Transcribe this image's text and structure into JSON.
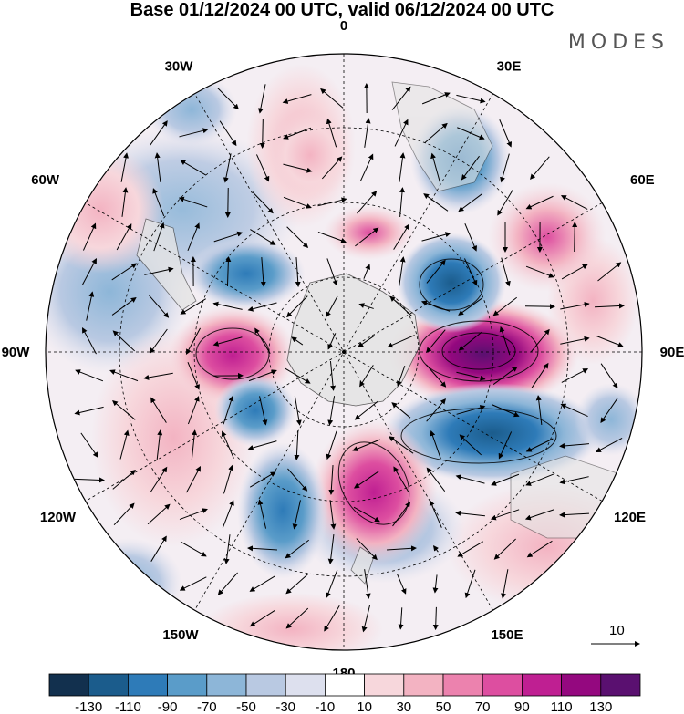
{
  "title": "Base 01/12/2024 00 UTC, valid 06/12/2024 00 UTC",
  "brand": "MODES",
  "longitude_labels": [
    "0",
    "30E",
    "60E",
    "90E",
    "120E",
    "150E",
    "180",
    "150W",
    "120W",
    "90W",
    "60W",
    "30W"
  ],
  "reference_vector": "10",
  "colorbar": {
    "labels": [
      "-130",
      "-110",
      "-90",
      "-70",
      "-50",
      "-30",
      "-10",
      "10",
      "30",
      "50",
      "70",
      "90",
      "110",
      "130"
    ],
    "colors": [
      "#12304e",
      "#1b5c8c",
      "#2e7bb8",
      "#5a9cc9",
      "#8db6d8",
      "#b9c9e2",
      "#dde0ee",
      "#ffffff",
      "#f7d7dc",
      "#f3b3c2",
      "#ec82ae",
      "#dd4ea0",
      "#bf1f92",
      "#94087f",
      "#5a1070"
    ]
  },
  "field_colors": {
    "land": "#e4e4e4",
    "coast": "#444444"
  }
}
